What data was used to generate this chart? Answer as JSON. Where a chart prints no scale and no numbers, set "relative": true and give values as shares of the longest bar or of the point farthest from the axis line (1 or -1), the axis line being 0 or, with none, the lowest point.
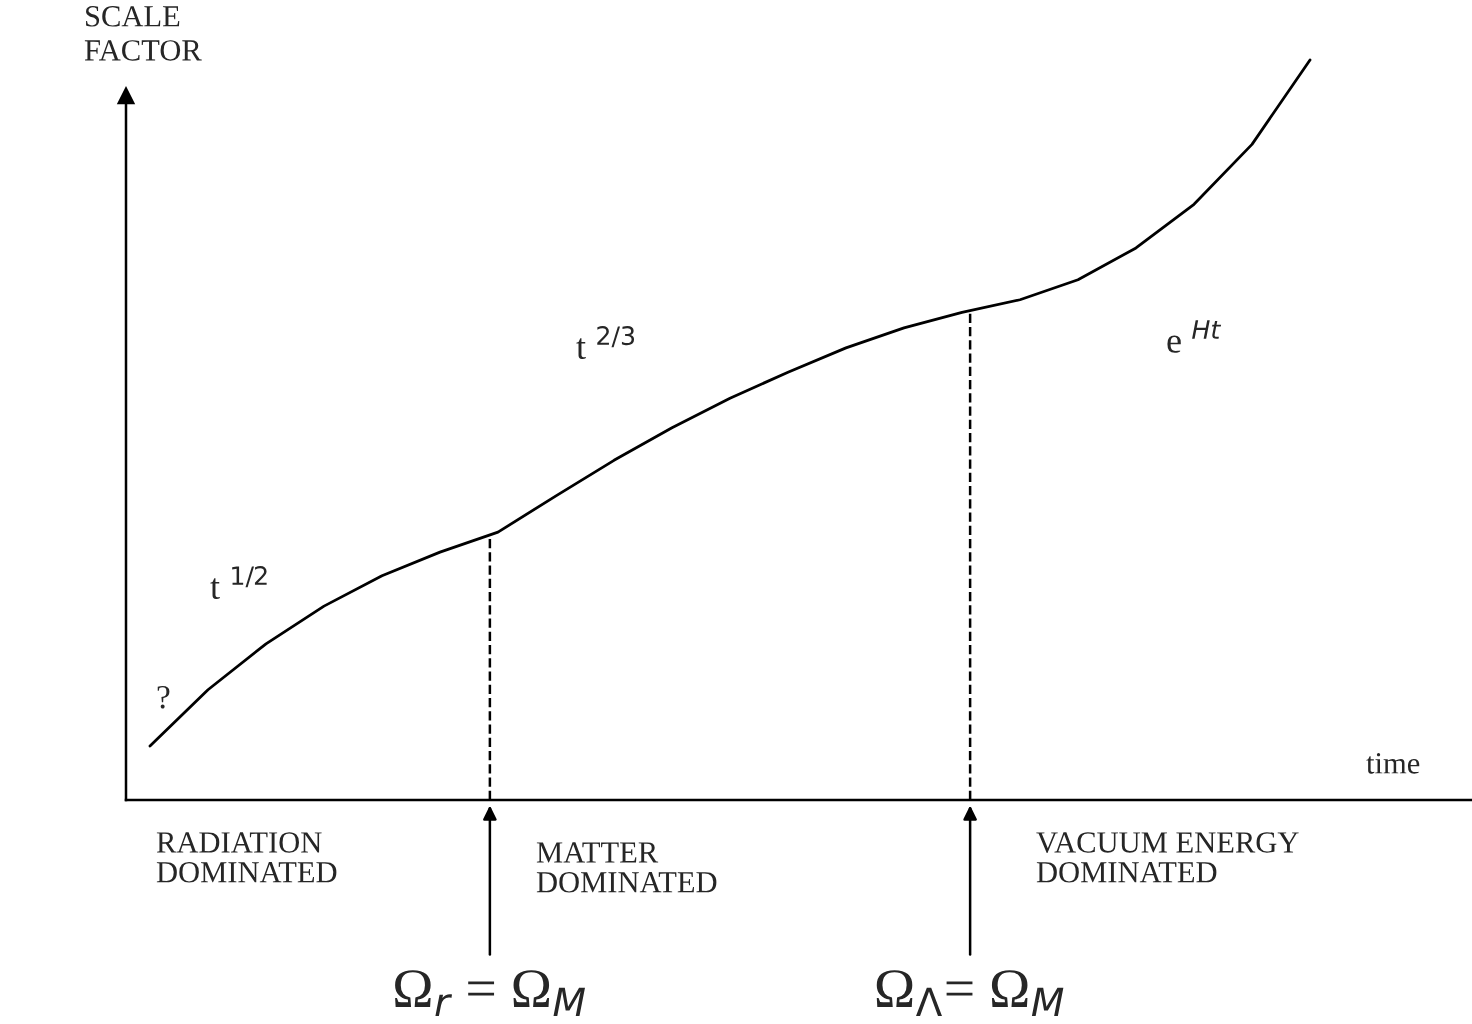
{
  "chart_data": {
    "type": "line",
    "relative": true,
    "xlabel": "time",
    "ylabel": "SCALE\nFACTOR",
    "categories": [
      null,
      null,
      null,
      null,
      null,
      null,
      null,
      null,
      null,
      null,
      null,
      null,
      null,
      null,
      null,
      null,
      null,
      null,
      null,
      null,
      null
    ],
    "series": [
      {
        "color": "#000000",
        "values": [
          0.073,
          0.149,
          0.211,
          0.262,
          0.303,
          0.335,
          0.362,
          0.411,
          0.459,
          0.503,
          0.543,
          0.578,
          0.611,
          0.638,
          0.659,
          0.676,
          0.703,
          0.746,
          0.805,
          0.886,
          1
        ]
      }
    ],
    "annotations": [
      "?",
      "t $^{1/2}$",
      "t $^{2/3}$",
      "e $^{Ht}$",
      "RADIATION\nDOMINATED",
      "MATTER\nDOMINATED",
      "VACUUM ENERGY\nDOMINATED",
      "Ω$_{r}$ = Ω$_{M}$",
      "Ω$_{Λ}$= Ω$_{M}$"
    ],
    "line_style": "solid"
  }
}
